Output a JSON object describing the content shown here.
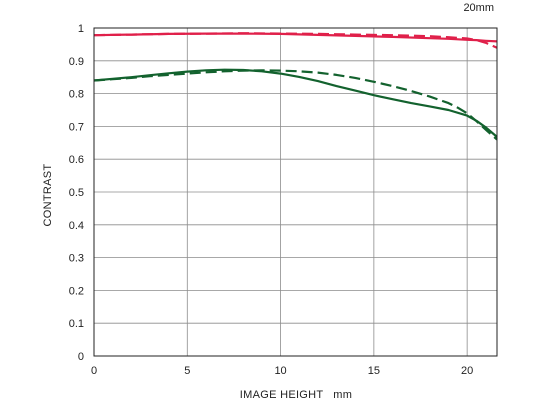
{
  "chart_data": {
    "type": "line",
    "title": "",
    "subtitle": "20mm",
    "xlabel": "IMAGE HEIGHT   mm",
    "ylabel": "CONTRAST",
    "xlim": [
      0,
      21.6
    ],
    "ylim": [
      0,
      1
    ],
    "xticks": [
      0,
      5,
      10,
      15,
      20
    ],
    "xtick_labels": [
      "0",
      "5",
      "10",
      "15",
      "20"
    ],
    "yticks": [
      0,
      0.1,
      0.2,
      0.3,
      0.4,
      0.5,
      0.6,
      0.7,
      0.8,
      0.9,
      1
    ],
    "ytick_labels": [
      "0",
      "0.1",
      "0.2",
      "0.3",
      "0.4",
      "0.5",
      "0.6",
      "0.7",
      "0.8",
      "0.9",
      "1"
    ],
    "grid": true,
    "legend": "none",
    "series": [
      {
        "color": "#e0204a",
        "dash": "solid",
        "x": [
          0,
          2,
          4,
          6,
          8,
          10,
          12,
          14,
          16,
          18,
          19,
          20,
          20.5,
          21,
          21.6
        ],
        "y": [
          0.978,
          0.98,
          0.982,
          0.983,
          0.983,
          0.982,
          0.979,
          0.976,
          0.973,
          0.969,
          0.967,
          0.964,
          0.963,
          0.961,
          0.959
        ]
      },
      {
        "color": "#e0204a",
        "dash": "dashed",
        "x": [
          0,
          2,
          4,
          6,
          8,
          10,
          12,
          14,
          16,
          18,
          19,
          20,
          20.5,
          21,
          21.6
        ],
        "y": [
          0.978,
          0.98,
          0.982,
          0.983,
          0.984,
          0.983,
          0.982,
          0.98,
          0.978,
          0.975,
          0.972,
          0.968,
          0.963,
          0.955,
          0.94
        ]
      },
      {
        "color": "#13622e",
        "dash": "solid",
        "x": [
          0,
          1,
          2,
          3,
          4,
          5,
          6,
          7,
          8,
          9,
          10,
          11,
          12,
          13,
          14,
          15,
          16,
          17,
          18,
          19,
          20,
          20.5,
          21,
          21.6
        ],
        "y": [
          0.84,
          0.845,
          0.85,
          0.856,
          0.862,
          0.867,
          0.871,
          0.873,
          0.872,
          0.868,
          0.861,
          0.851,
          0.838,
          0.823,
          0.809,
          0.795,
          0.783,
          0.771,
          0.761,
          0.75,
          0.733,
          0.717,
          0.697,
          0.668
        ]
      },
      {
        "color": "#13622e",
        "dash": "dashed",
        "x": [
          0,
          1,
          2,
          3,
          4,
          5,
          6,
          7,
          8,
          9,
          10,
          11,
          12,
          13,
          14,
          15,
          16,
          17,
          18,
          19,
          19.5,
          20,
          20.5,
          21,
          21.6
        ],
        "y": [
          0.84,
          0.844,
          0.848,
          0.853,
          0.857,
          0.861,
          0.865,
          0.868,
          0.87,
          0.871,
          0.87,
          0.868,
          0.864,
          0.857,
          0.848,
          0.836,
          0.823,
          0.808,
          0.791,
          0.771,
          0.757,
          0.74,
          0.716,
          0.69,
          0.66
        ]
      }
    ]
  }
}
